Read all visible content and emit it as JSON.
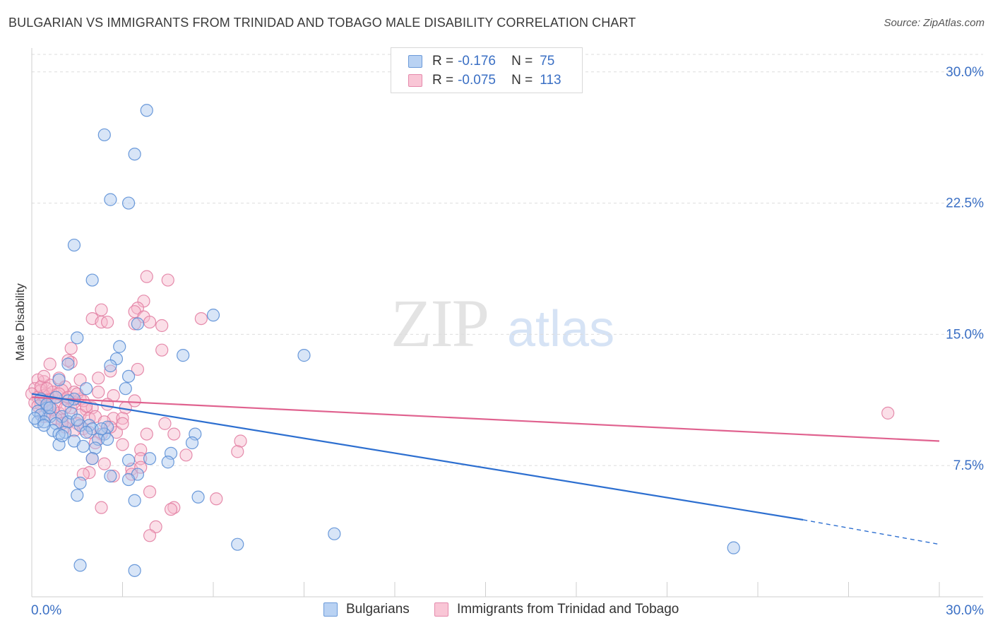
{
  "title": "BULGARIAN VS IMMIGRANTS FROM TRINIDAD AND TOBAGO MALE DISABILITY CORRELATION CHART",
  "source": "Source: ZipAtlas.com",
  "watermark": {
    "zip": "ZIP",
    "atlas": "atlas"
  },
  "colors": {
    "bulgarians_fill": "#a9c6ee",
    "bulgarians_stroke": "#5b8fd6",
    "bulgarians_line": "#2d6fd0",
    "trinidad_fill": "#f6b8cc",
    "trinidad_stroke": "#e27fa3",
    "trinidad_line": "#e0628f",
    "tick_label": "#3a6fc4",
    "grid": "#dddddd"
  },
  "legend": {
    "rows": [
      {
        "r_label": "R =",
        "r_value": "-0.176",
        "n_label": "N =",
        "n_value": "75"
      },
      {
        "r_label": "R =",
        "r_value": "-0.075",
        "n_label": "N =",
        "n_value": "113"
      }
    ]
  },
  "chart_data": {
    "type": "scatter",
    "xlabel": "",
    "ylabel": "Male Disability",
    "xlim": [
      0,
      30
    ],
    "ylim": [
      0,
      31
    ],
    "x_tick_labels": [
      "0.0%",
      "30.0%"
    ],
    "y_ticks": [
      7.5,
      15.0,
      22.5,
      30.0
    ],
    "y_tick_labels": [
      "7.5%",
      "15.0%",
      "22.5%",
      "30.0%"
    ],
    "grid": true,
    "legend_placement": "bottom-center",
    "series": [
      {
        "name": "Bulgarians",
        "trend": {
          "x0": 0.0,
          "y0": 11.6,
          "x1": 25.5,
          "y1": 4.4,
          "dashed_to_x": 30.0,
          "dashed_to_y": 3.0
        },
        "points": [
          [
            3.8,
            27.8
          ],
          [
            2.4,
            26.4
          ],
          [
            3.4,
            25.3
          ],
          [
            2.6,
            22.7
          ],
          [
            3.2,
            22.5
          ],
          [
            1.4,
            20.1
          ],
          [
            2.0,
            18.1
          ],
          [
            6.0,
            16.1
          ],
          [
            3.5,
            15.6
          ],
          [
            1.5,
            14.8
          ],
          [
            2.9,
            14.3
          ],
          [
            5.0,
            13.8
          ],
          [
            9.0,
            13.8
          ],
          [
            2.8,
            13.6
          ],
          [
            2.6,
            13.2
          ],
          [
            1.2,
            13.3
          ],
          [
            3.2,
            12.6
          ],
          [
            0.9,
            12.4
          ],
          [
            3.1,
            11.9
          ],
          [
            1.8,
            11.9
          ],
          [
            1.4,
            11.3
          ],
          [
            0.8,
            11.4
          ],
          [
            1.2,
            11.2
          ],
          [
            0.3,
            11.3
          ],
          [
            0.5,
            10.8
          ],
          [
            0.2,
            10.6
          ],
          [
            0.3,
            10.4
          ],
          [
            0.6,
            10.3
          ],
          [
            1.0,
            10.3
          ],
          [
            0.2,
            10.0
          ],
          [
            0.4,
            10.0
          ],
          [
            0.8,
            9.9
          ],
          [
            1.2,
            10.0
          ],
          [
            1.6,
            9.8
          ],
          [
            1.9,
            9.8
          ],
          [
            2.0,
            9.6
          ],
          [
            2.5,
            9.7
          ],
          [
            0.7,
            9.5
          ],
          [
            1.1,
            9.4
          ],
          [
            1.8,
            9.4
          ],
          [
            0.9,
            9.3
          ],
          [
            2.4,
            9.3
          ],
          [
            5.4,
            9.3
          ],
          [
            2.2,
            9.0
          ],
          [
            2.5,
            9.0
          ],
          [
            1.4,
            8.9
          ],
          [
            0.9,
            8.7
          ],
          [
            1.7,
            8.6
          ],
          [
            5.3,
            8.8
          ],
          [
            2.1,
            8.5
          ],
          [
            4.6,
            8.2
          ],
          [
            3.2,
            7.8
          ],
          [
            3.9,
            7.9
          ],
          [
            4.5,
            7.7
          ],
          [
            2.0,
            7.9
          ],
          [
            3.5,
            7.0
          ],
          [
            2.6,
            6.9
          ],
          [
            3.2,
            6.7
          ],
          [
            1.6,
            6.5
          ],
          [
            1.5,
            5.8
          ],
          [
            5.5,
            5.7
          ],
          [
            3.4,
            5.5
          ],
          [
            10.0,
            3.6
          ],
          [
            6.8,
            3.0
          ],
          [
            1.6,
            1.8
          ],
          [
            3.4,
            1.5
          ],
          [
            23.2,
            2.8
          ],
          [
            0.1,
            10.2
          ],
          [
            0.5,
            11.0
          ],
          [
            1.3,
            10.5
          ],
          [
            0.4,
            9.8
          ],
          [
            1.0,
            9.2
          ],
          [
            2.3,
            9.6
          ],
          [
            0.6,
            10.8
          ],
          [
            1.5,
            10.1
          ]
        ]
      },
      {
        "name": "Immigrants from Trinidad and Tobago",
        "trend": {
          "x0": 0.0,
          "y0": 11.4,
          "x1": 30.0,
          "y1": 8.9
        },
        "points": [
          [
            3.8,
            18.3
          ],
          [
            4.5,
            18.1
          ],
          [
            3.7,
            16.9
          ],
          [
            2.3,
            16.4
          ],
          [
            3.5,
            16.5
          ],
          [
            3.4,
            16.3
          ],
          [
            3.7,
            16.0
          ],
          [
            5.6,
            15.9
          ],
          [
            2.0,
            15.9
          ],
          [
            2.3,
            15.7
          ],
          [
            2.5,
            15.7
          ],
          [
            3.4,
            15.6
          ],
          [
            3.9,
            15.7
          ],
          [
            4.3,
            15.5
          ],
          [
            1.3,
            14.2
          ],
          [
            1.3,
            13.4
          ],
          [
            1.2,
            13.5
          ],
          [
            0.6,
            13.3
          ],
          [
            2.6,
            12.9
          ],
          [
            3.5,
            13.0
          ],
          [
            4.3,
            14.1
          ],
          [
            0.9,
            12.5
          ],
          [
            1.6,
            12.4
          ],
          [
            0.4,
            12.3
          ],
          [
            0.6,
            12.1
          ],
          [
            0.2,
            12.4
          ],
          [
            1.1,
            12.0
          ],
          [
            2.2,
            12.5
          ],
          [
            0.1,
            11.9
          ],
          [
            0.3,
            11.8
          ],
          [
            0.5,
            11.6
          ],
          [
            0.7,
            11.7
          ],
          [
            1.0,
            11.8
          ],
          [
            1.4,
            11.7
          ],
          [
            2.2,
            11.7
          ],
          [
            0.0,
            11.6
          ],
          [
            0.2,
            11.4
          ],
          [
            0.4,
            11.5
          ],
          [
            0.6,
            11.3
          ],
          [
            0.8,
            11.4
          ],
          [
            1.1,
            11.3
          ],
          [
            1.6,
            11.3
          ],
          [
            2.7,
            11.5
          ],
          [
            3.4,
            11.2
          ],
          [
            0.1,
            11.1
          ],
          [
            0.3,
            11.0
          ],
          [
            0.5,
            10.9
          ],
          [
            0.8,
            11.0
          ],
          [
            1.3,
            10.8
          ],
          [
            1.8,
            10.7
          ],
          [
            2.0,
            10.8
          ],
          [
            3.1,
            10.8
          ],
          [
            0.6,
            10.6
          ],
          [
            0.9,
            10.5
          ],
          [
            1.6,
            10.4
          ],
          [
            1.9,
            10.2
          ],
          [
            2.1,
            10.3
          ],
          [
            2.7,
            10.2
          ],
          [
            3.0,
            10.2
          ],
          [
            1.0,
            10.1
          ],
          [
            1.2,
            10.0
          ],
          [
            1.5,
            9.9
          ],
          [
            2.4,
            10.0
          ],
          [
            4.4,
            9.9
          ],
          [
            1.1,
            9.7
          ],
          [
            1.7,
            9.6
          ],
          [
            1.9,
            9.4
          ],
          [
            2.3,
            9.3
          ],
          [
            2.8,
            9.4
          ],
          [
            3.8,
            9.3
          ],
          [
            4.7,
            9.3
          ],
          [
            6.9,
            8.9
          ],
          [
            2.1,
            8.8
          ],
          [
            3.0,
            8.7
          ],
          [
            3.6,
            8.4
          ],
          [
            5.1,
            8.1
          ],
          [
            6.8,
            8.3
          ],
          [
            2.0,
            7.9
          ],
          [
            2.4,
            7.6
          ],
          [
            3.6,
            7.9
          ],
          [
            1.9,
            7.1
          ],
          [
            3.3,
            7.3
          ],
          [
            3.6,
            7.4
          ],
          [
            1.7,
            7.0
          ],
          [
            2.7,
            6.9
          ],
          [
            3.3,
            7.0
          ],
          [
            3.9,
            6.0
          ],
          [
            6.1,
            5.6
          ],
          [
            4.7,
            5.1
          ],
          [
            2.3,
            5.1
          ],
          [
            4.6,
            5.0
          ],
          [
            4.1,
            4.0
          ],
          [
            3.9,
            3.5
          ],
          [
            28.3,
            10.5
          ],
          [
            0.2,
            10.9
          ],
          [
            0.4,
            10.3
          ],
          [
            0.7,
            10.7
          ],
          [
            1.1,
            10.8
          ],
          [
            1.4,
            11.1
          ],
          [
            0.3,
            12.0
          ],
          [
            0.5,
            11.9
          ],
          [
            0.9,
            11.6
          ],
          [
            1.2,
            11.4
          ],
          [
            1.5,
            11.6
          ],
          [
            1.7,
            11.2
          ],
          [
            2.5,
            11.0
          ],
          [
            0.8,
            10.2
          ],
          [
            1.0,
            9.9
          ],
          [
            1.4,
            9.5
          ],
          [
            2.6,
            9.7
          ],
          [
            3.0,
            9.9
          ],
          [
            1.8,
            10.9
          ],
          [
            0.4,
            12.6
          ]
        ]
      }
    ]
  }
}
